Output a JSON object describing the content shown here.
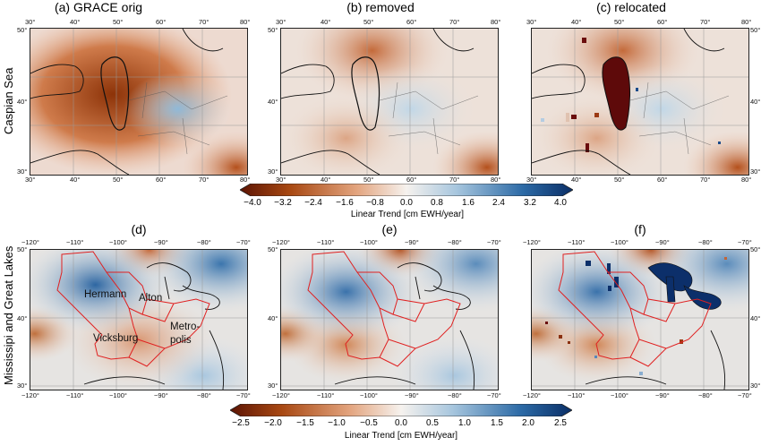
{
  "rows": [
    {
      "label": "Caspian Sea",
      "panels": [
        {
          "title": "(a)  GRACE orig"
        },
        {
          "title": "(b)  removed"
        },
        {
          "title": "(c)  relocated"
        }
      ],
      "x_ticks": [
        "30°",
        "40°",
        "50°",
        "60°",
        "70°",
        "80°"
      ],
      "y_ticks": [
        "50°",
        "40°",
        "30°"
      ],
      "colorbar": {
        "ticks": [
          "−4.0",
          "−3.2",
          "−2.4",
          "−1.6",
          "−0.8",
          "0.0",
          "0.8",
          "1.6",
          "2.4",
          "3.2",
          "4.0"
        ],
        "label": "Linear Trend [cm EWH/year]"
      }
    },
    {
      "label": "Mississipi and Great Lakes",
      "panels": [
        {
          "title": "(d)"
        },
        {
          "title": "(e)"
        },
        {
          "title": "(f)"
        }
      ],
      "x_ticks": [
        "−120°",
        "−110°",
        "−100°",
        "−90°",
        "−80°",
        "−70°"
      ],
      "y_ticks": [
        "50°",
        "40°",
        "30°"
      ],
      "basin_labels": [
        "Hermann",
        "Alton",
        "Metro-\npolis",
        "Vicksburg"
      ],
      "colorbar": {
        "ticks": [
          "−2.5",
          "−2.0",
          "−1.5",
          "−1.0",
          "−0.5",
          "0.0",
          "0.5",
          "1.0",
          "1.5",
          "2.0",
          "2.5"
        ],
        "label": "Linear Trend [cm EWH/year]"
      }
    }
  ],
  "colors": {
    "negative": "#8b2a05",
    "neutral": "#f3f1ee",
    "positive": "#0b3d78",
    "basin_outline": "#e02020",
    "coastline": "#111111"
  }
}
